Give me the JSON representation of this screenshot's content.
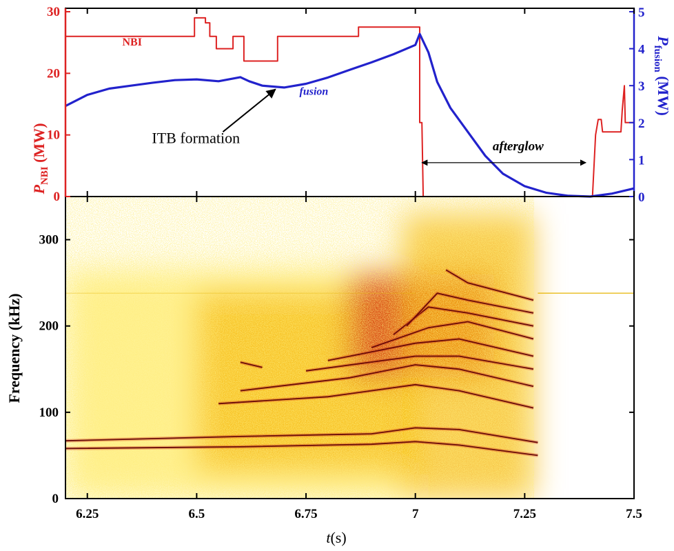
{
  "chart_data": [
    {
      "type": "line",
      "panel": "top",
      "ylabel_left": {
        "main": "P",
        "sub": "NBI",
        "unit": " (MW)"
      },
      "ylabel_right": {
        "main": "P",
        "sub": "fusion",
        "unit": " (MW)"
      },
      "xlim": [
        6.2,
        7.5
      ],
      "ylim_left": [
        0,
        30
      ],
      "ylim_right": [
        0,
        5
      ],
      "left_ticks": [
        0,
        10,
        20,
        30
      ],
      "right_ticks": [
        0,
        1,
        2,
        3,
        4,
        5
      ],
      "colors": {
        "nbi": "#dd2222",
        "fusion": "#2222cc"
      },
      "series": [
        {
          "name": "NBI",
          "axis": "left",
          "color": "#dd2222",
          "points": [
            [
              6.2,
              26.0
            ],
            [
              6.495,
              26.0
            ],
            [
              6.495,
              29.0
            ],
            [
              6.52,
              29.0
            ],
            [
              6.52,
              28.2
            ],
            [
              6.53,
              28.2
            ],
            [
              6.53,
              26.0
            ],
            [
              6.545,
              26.0
            ],
            [
              6.545,
              24.0
            ],
            [
              6.583,
              24.0
            ],
            [
              6.583,
              26.0
            ],
            [
              6.608,
              26.0
            ],
            [
              6.608,
              22.0
            ],
            [
              6.685,
              22.0
            ],
            [
              6.685,
              26.0
            ],
            [
              6.87,
              26.0
            ],
            [
              6.87,
              27.5
            ],
            [
              7.01,
              27.5
            ],
            [
              7.01,
              12.0
            ],
            [
              7.015,
              12.0
            ],
            [
              7.018,
              0.0
            ],
            [
              7.405,
              0.0
            ],
            [
              7.412,
              10.0
            ],
            [
              7.418,
              12.5
            ],
            [
              7.425,
              12.5
            ],
            [
              7.428,
              10.5
            ],
            [
              7.47,
              10.5
            ],
            [
              7.473,
              14.0
            ],
            [
              7.478,
              18.0
            ],
            [
              7.48,
              12.0
            ],
            [
              7.5,
              12.0
            ]
          ]
        },
        {
          "name": "fusion",
          "axis": "right",
          "color": "#2222cc",
          "points": [
            [
              6.2,
              2.45
            ],
            [
              6.25,
              2.75
            ],
            [
              6.3,
              2.92
            ],
            [
              6.35,
              3.0
            ],
            [
              6.4,
              3.08
            ],
            [
              6.45,
              3.15
            ],
            [
              6.5,
              3.17
            ],
            [
              6.55,
              3.12
            ],
            [
              6.6,
              3.23
            ],
            [
              6.62,
              3.12
            ],
            [
              6.65,
              3.0
            ],
            [
              6.7,
              2.95
            ],
            [
              6.75,
              3.05
            ],
            [
              6.8,
              3.22
            ],
            [
              6.85,
              3.43
            ],
            [
              6.9,
              3.63
            ],
            [
              6.95,
              3.85
            ],
            [
              7.0,
              4.1
            ],
            [
              7.01,
              4.4
            ],
            [
              7.03,
              3.9
            ],
            [
              7.05,
              3.1
            ],
            [
              7.08,
              2.4
            ],
            [
              7.12,
              1.75
            ],
            [
              7.16,
              1.1
            ],
            [
              7.2,
              0.62
            ],
            [
              7.25,
              0.28
            ],
            [
              7.3,
              0.1
            ],
            [
              7.35,
              0.02
            ],
            [
              7.4,
              0.0
            ],
            [
              7.45,
              0.08
            ],
            [
              7.5,
              0.22
            ]
          ]
        }
      ],
      "annotations": [
        {
          "text": "NBI",
          "style": "bold",
          "color": "#dd2222",
          "at": [
            6.33,
            24.5
          ]
        },
        {
          "text": "fusion",
          "style": "bold-italic",
          "color": "#2222cc",
          "at": [
            6.735,
            2.75
          ]
        },
        {
          "text": "ITB formation",
          "color": "#000000",
          "at": [
            6.5,
            1.45
          ],
          "arrow_to": [
            6.68,
            2.9
          ]
        },
        {
          "text": "afterglow",
          "style": "bold-italic",
          "color": "#000000",
          "at": [
            7.235,
            7.5
          ],
          "span": [
            7.015,
            7.39
          ],
          "span_y": 5.5
        }
      ]
    },
    {
      "type": "heatmap",
      "panel": "bottom",
      "xlabel": {
        "main": "t",
        "unit": "(s)"
      },
      "ylabel": "Frequency (kHz)",
      "xlim": [
        6.2,
        7.5
      ],
      "ylim": [
        0,
        350
      ],
      "x_ticks": [
        6.25,
        6.5,
        6.75,
        7,
        7.25,
        7.5
      ],
      "y_ticks": [
        0,
        100,
        200,
        300
      ],
      "colormap": [
        "#ffffff",
        "#ffe84a",
        "#f5b400",
        "#d8401a",
        "#6a0a08",
        "#000000"
      ],
      "background_regions": [
        {
          "x": [
            6.2,
            7.0
          ],
          "y": [
            0,
            265
          ],
          "intensity": 0.35
        },
        {
          "x": [
            6.5,
            7.0
          ],
          "y": [
            30,
            240
          ],
          "intensity": 0.45
        },
        {
          "x": [
            6.85,
            7.18
          ],
          "y": [
            140,
            260
          ],
          "intensity": 0.7
        },
        {
          "x": [
            6.97,
            7.27
          ],
          "y": [
            0,
            330
          ],
          "intensity": 0.45
        }
      ],
      "horizontal_line": {
        "freq": 238,
        "color": "#e6b400"
      },
      "modes": [
        {
          "x": [
            6.2,
            6.6,
            6.9,
            7.0,
            7.1,
            7.28
          ],
          "f": [
            67,
            72,
            75,
            82,
            80,
            65
          ]
        },
        {
          "x": [
            6.2,
            6.6,
            6.9,
            7.0,
            7.1,
            7.28
          ],
          "f": [
            58,
            60,
            63,
            66,
            62,
            50
          ]
        },
        {
          "x": [
            6.55,
            6.8,
            7.0,
            7.1,
            7.27
          ],
          "f": [
            110,
            118,
            132,
            125,
            105
          ]
        },
        {
          "x": [
            6.6,
            6.85,
            7.0,
            7.1,
            7.27
          ],
          "f": [
            125,
            140,
            155,
            150,
            130
          ]
        },
        {
          "x": [
            6.75,
            7.0,
            7.1,
            7.27
          ],
          "f": [
            148,
            165,
            165,
            150
          ]
        },
        {
          "x": [
            6.8,
            7.0,
            7.1,
            7.27
          ],
          "f": [
            160,
            180,
            185,
            165
          ]
        },
        {
          "x": [
            6.9,
            7.03,
            7.12,
            7.27
          ],
          "f": [
            175,
            198,
            205,
            185
          ]
        },
        {
          "x": [
            6.95,
            7.03,
            7.12,
            7.27
          ],
          "f": [
            190,
            222,
            215,
            200
          ]
        },
        {
          "x": [
            6.98,
            7.05,
            7.12,
            7.27
          ],
          "f": [
            200,
            238,
            230,
            215
          ]
        },
        {
          "x": [
            7.07,
            7.12,
            7.27
          ],
          "f": [
            265,
            250,
            230
          ]
        },
        {
          "x": [
            6.6,
            6.65
          ],
          "f": [
            158,
            152
          ]
        }
      ]
    }
  ]
}
